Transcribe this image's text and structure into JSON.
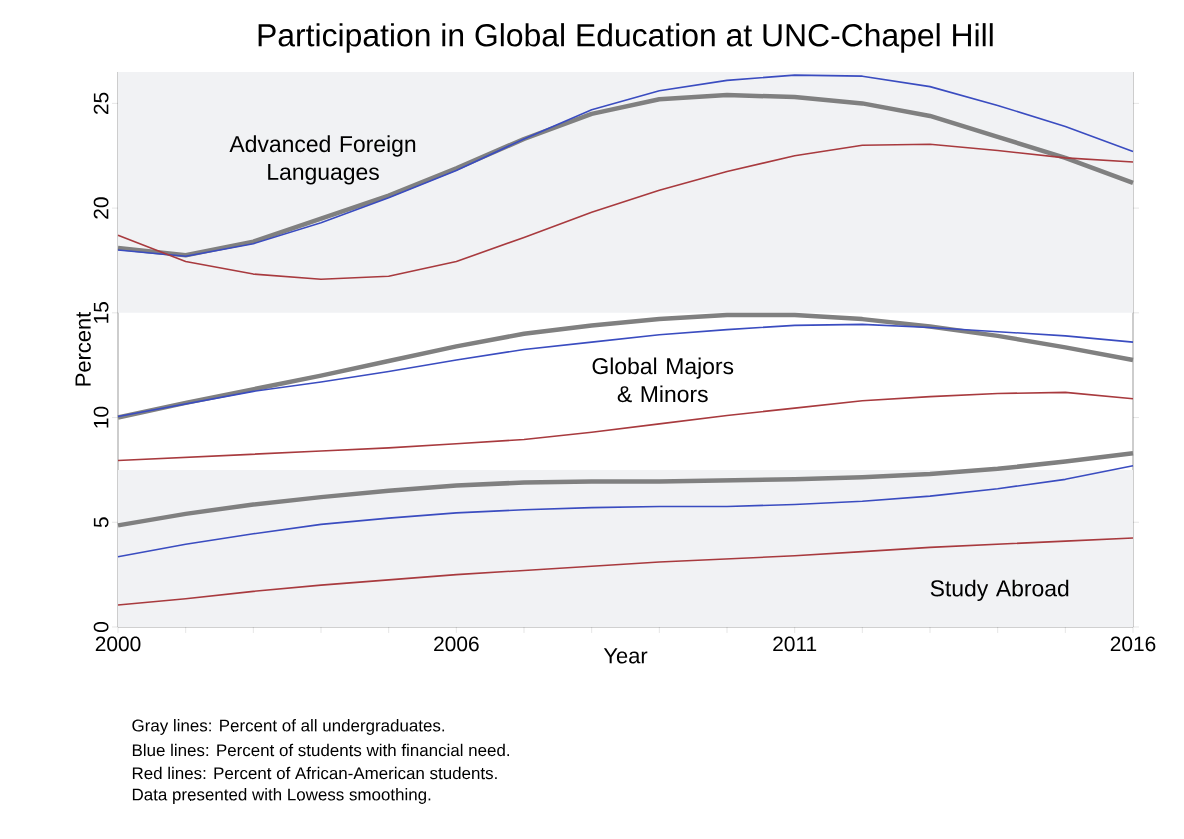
{
  "chart_data": {
    "type": "line",
    "title": "Participation in Global Education at UNC-Chapel Hill",
    "xlabel": "Year",
    "ylabel": "Percent",
    "categories": [
      "2000",
      null,
      null,
      null,
      null,
      "2006",
      null,
      null,
      null,
      null,
      "2011",
      null,
      null,
      null,
      null,
      "2016"
    ],
    "ylim": [
      0,
      26.5
    ],
    "yticks": [
      0,
      5,
      10,
      15,
      20,
      25
    ],
    "bands": [
      {
        "axis": "y",
        "from": 15,
        "to": 26.5,
        "color": "#f1f2f4"
      },
      {
        "axis": "y",
        "from": 0,
        "to": 7.5,
        "color": "#f1f2f4"
      }
    ],
    "series": [
      {
        "color": "#808080",
        "values": [
          18.1,
          17.75,
          18.4,
          19.5,
          20.6,
          21.9,
          23.3,
          24.5,
          25.2,
          25.4,
          25.3,
          25.0,
          24.4,
          23.4,
          22.4,
          21.2
        ]
      },
      {
        "color": "#3a4cc0",
        "values": [
          18.0,
          17.7,
          18.3,
          19.3,
          20.5,
          21.8,
          23.3,
          24.7,
          25.6,
          26.1,
          26.35,
          26.3,
          25.8,
          24.9,
          23.9,
          22.7
        ]
      },
      {
        "color": "#a83a3e",
        "values": [
          18.7,
          17.45,
          16.85,
          16.6,
          16.75,
          17.45,
          18.6,
          19.8,
          20.85,
          21.75,
          22.5,
          23.0,
          23.05,
          22.75,
          22.4,
          22.2
        ]
      },
      {
        "color": "#808080",
        "values": [
          10.0,
          10.7,
          11.35,
          12.0,
          12.7,
          13.4,
          14.0,
          14.4,
          14.7,
          14.9,
          14.9,
          14.7,
          14.35,
          13.9,
          13.35,
          12.75
        ]
      },
      {
        "color": "#3a4cc0",
        "values": [
          10.05,
          10.65,
          11.25,
          11.7,
          12.2,
          12.75,
          13.25,
          13.6,
          13.95,
          14.2,
          14.4,
          14.45,
          14.3,
          14.1,
          13.9,
          13.6
        ]
      },
      {
        "color": "#a83a3e",
        "values": [
          7.95,
          8.1,
          8.25,
          8.4,
          8.55,
          8.75,
          8.95,
          9.3,
          9.7,
          10.1,
          10.45,
          10.8,
          11.0,
          11.15,
          11.2,
          10.9
        ]
      },
      {
        "color": "#808080",
        "values": [
          4.85,
          5.4,
          5.85,
          6.2,
          6.5,
          6.75,
          6.9,
          6.95,
          6.95,
          7.0,
          7.05,
          7.15,
          7.3,
          7.55,
          7.9,
          8.3
        ]
      },
      {
        "color": "#3a4cc0",
        "values": [
          3.35,
          3.95,
          4.45,
          4.9,
          5.2,
          5.45,
          5.6,
          5.7,
          5.75,
          5.75,
          5.85,
          6.0,
          6.25,
          6.6,
          7.05,
          7.7
        ]
      },
      {
        "color": "#a83a3e",
        "values": [
          1.05,
          1.35,
          1.7,
          2.0,
          2.25,
          2.5,
          2.7,
          2.9,
          3.1,
          3.25,
          3.4,
          3.6,
          3.8,
          3.95,
          4.1,
          4.25
        ]
      }
    ],
    "annotations": [
      "Advanced Foreign Languages",
      "Global Majors & Minors",
      "Study Abroad",
      "Gray lines: Percent of all undergraduates.",
      "Blue lines: Percent of students with financial need.",
      "Red lines: Percent of African-American students.",
      "Data presented with Lowess smoothing."
    ]
  }
}
